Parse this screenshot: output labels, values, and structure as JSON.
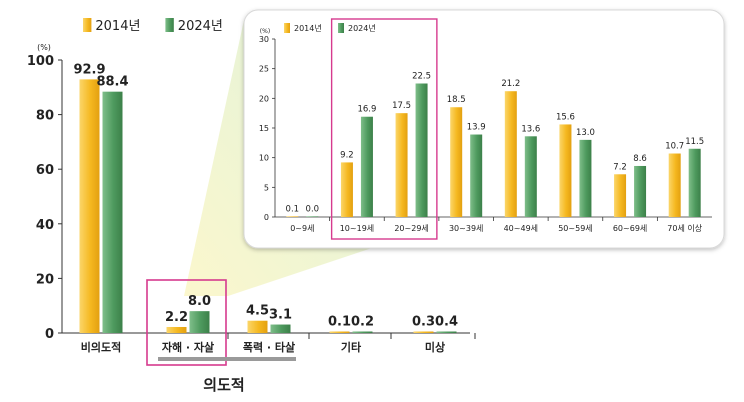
{
  "legend": [
    {
      "label": "2014년",
      "color": "#f5b820"
    },
    {
      "label": "2024년",
      "color": "#4e9a5e"
    }
  ],
  "group_label": "의도적",
  "chart_data": [
    {
      "type": "bar",
      "ylabel": "(%)",
      "ylim": [
        0,
        100
      ],
      "yticks": [
        0,
        20,
        40,
        60,
        80,
        100
      ],
      "categories": [
        "비의도적",
        "자해 · 자살",
        "폭력 · 타살",
        "기타",
        "미상"
      ],
      "series": [
        {
          "name": "2014년",
          "values": [
            92.9,
            2.2,
            4.5,
            0.1,
            0.3
          ]
        },
        {
          "name": "2024년",
          "values": [
            88.4,
            8.0,
            3.1,
            0.2,
            0.4
          ]
        }
      ],
      "highlight": "자해 · 자살",
      "legend_position": "top-left"
    },
    {
      "type": "bar",
      "ylabel": "(%)",
      "ylim": [
        0,
        30
      ],
      "yticks": [
        0,
        5,
        10,
        15,
        20,
        25,
        30
      ],
      "categories": [
        "0~9세",
        "10~19세",
        "20~29세",
        "30~39세",
        "40~49세",
        "50~59세",
        "60~69세",
        "70세 이상"
      ],
      "series": [
        {
          "name": "2014년",
          "values": [
            0.1,
            9.2,
            17.5,
            18.5,
            21.2,
            15.6,
            7.2,
            10.7
          ]
        },
        {
          "name": "2024년",
          "values": [
            0.0,
            16.9,
            22.5,
            13.9,
            13.6,
            13.0,
            8.6,
            11.5
          ]
        }
      ],
      "highlight": [
        "10~19세",
        "20~29세"
      ],
      "legend_position": "top-left"
    }
  ]
}
